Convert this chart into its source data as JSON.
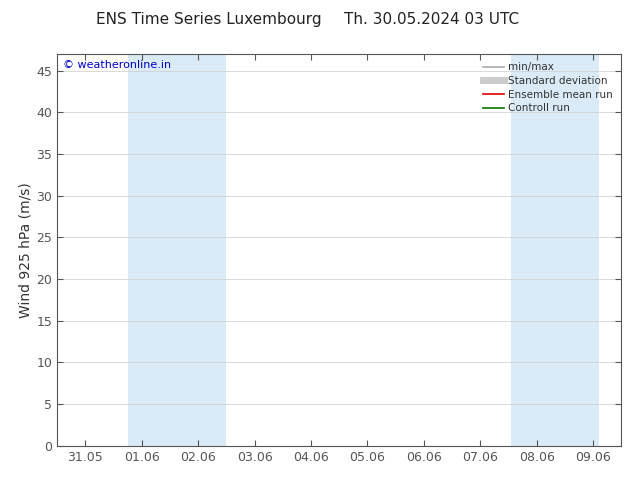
{
  "title_left": "ENS Time Series Luxembourg",
  "title_right": "Th. 30.05.2024 03 UTC",
  "ylabel": "Wind 925 hPa (m/s)",
  "watermark": "© weatheronline.in",
  "watermark_color": "#0000cc",
  "ylim": [
    0,
    47
  ],
  "yticks": [
    0,
    5,
    10,
    15,
    20,
    25,
    30,
    35,
    40,
    45
  ],
  "xtick_labels": [
    "31.05",
    "01.06",
    "02.06",
    "03.06",
    "04.06",
    "05.06",
    "06.06",
    "07.06",
    "08.06",
    "09.06"
  ],
  "xtick_positions": [
    0,
    1,
    2,
    3,
    4,
    5,
    6,
    7,
    8,
    9
  ],
  "shade_bands": [
    {
      "xmin": 0.75,
      "xmax": 2.5
    },
    {
      "xmin": 7.55,
      "xmax": 9.1
    }
  ],
  "shade_color": "#daeaf7",
  "background_color": "#ffffff",
  "legend_items": [
    {
      "label": "min/max",
      "color": "#aaaaaa",
      "lw": 1.2
    },
    {
      "label": "Standard deviation",
      "color": "#cccccc",
      "lw": 5
    },
    {
      "label": "Ensemble mean run",
      "color": "#dd0000",
      "lw": 1.2
    },
    {
      "label": "Controll run",
      "color": "#007700",
      "lw": 1.2
    }
  ],
  "font_size": 9,
  "title_font_size": 11,
  "grid_color": "#cccccc",
  "tick_color": "#555555",
  "spine_color": "#555555",
  "xlim": [
    -0.5,
    9.5
  ]
}
